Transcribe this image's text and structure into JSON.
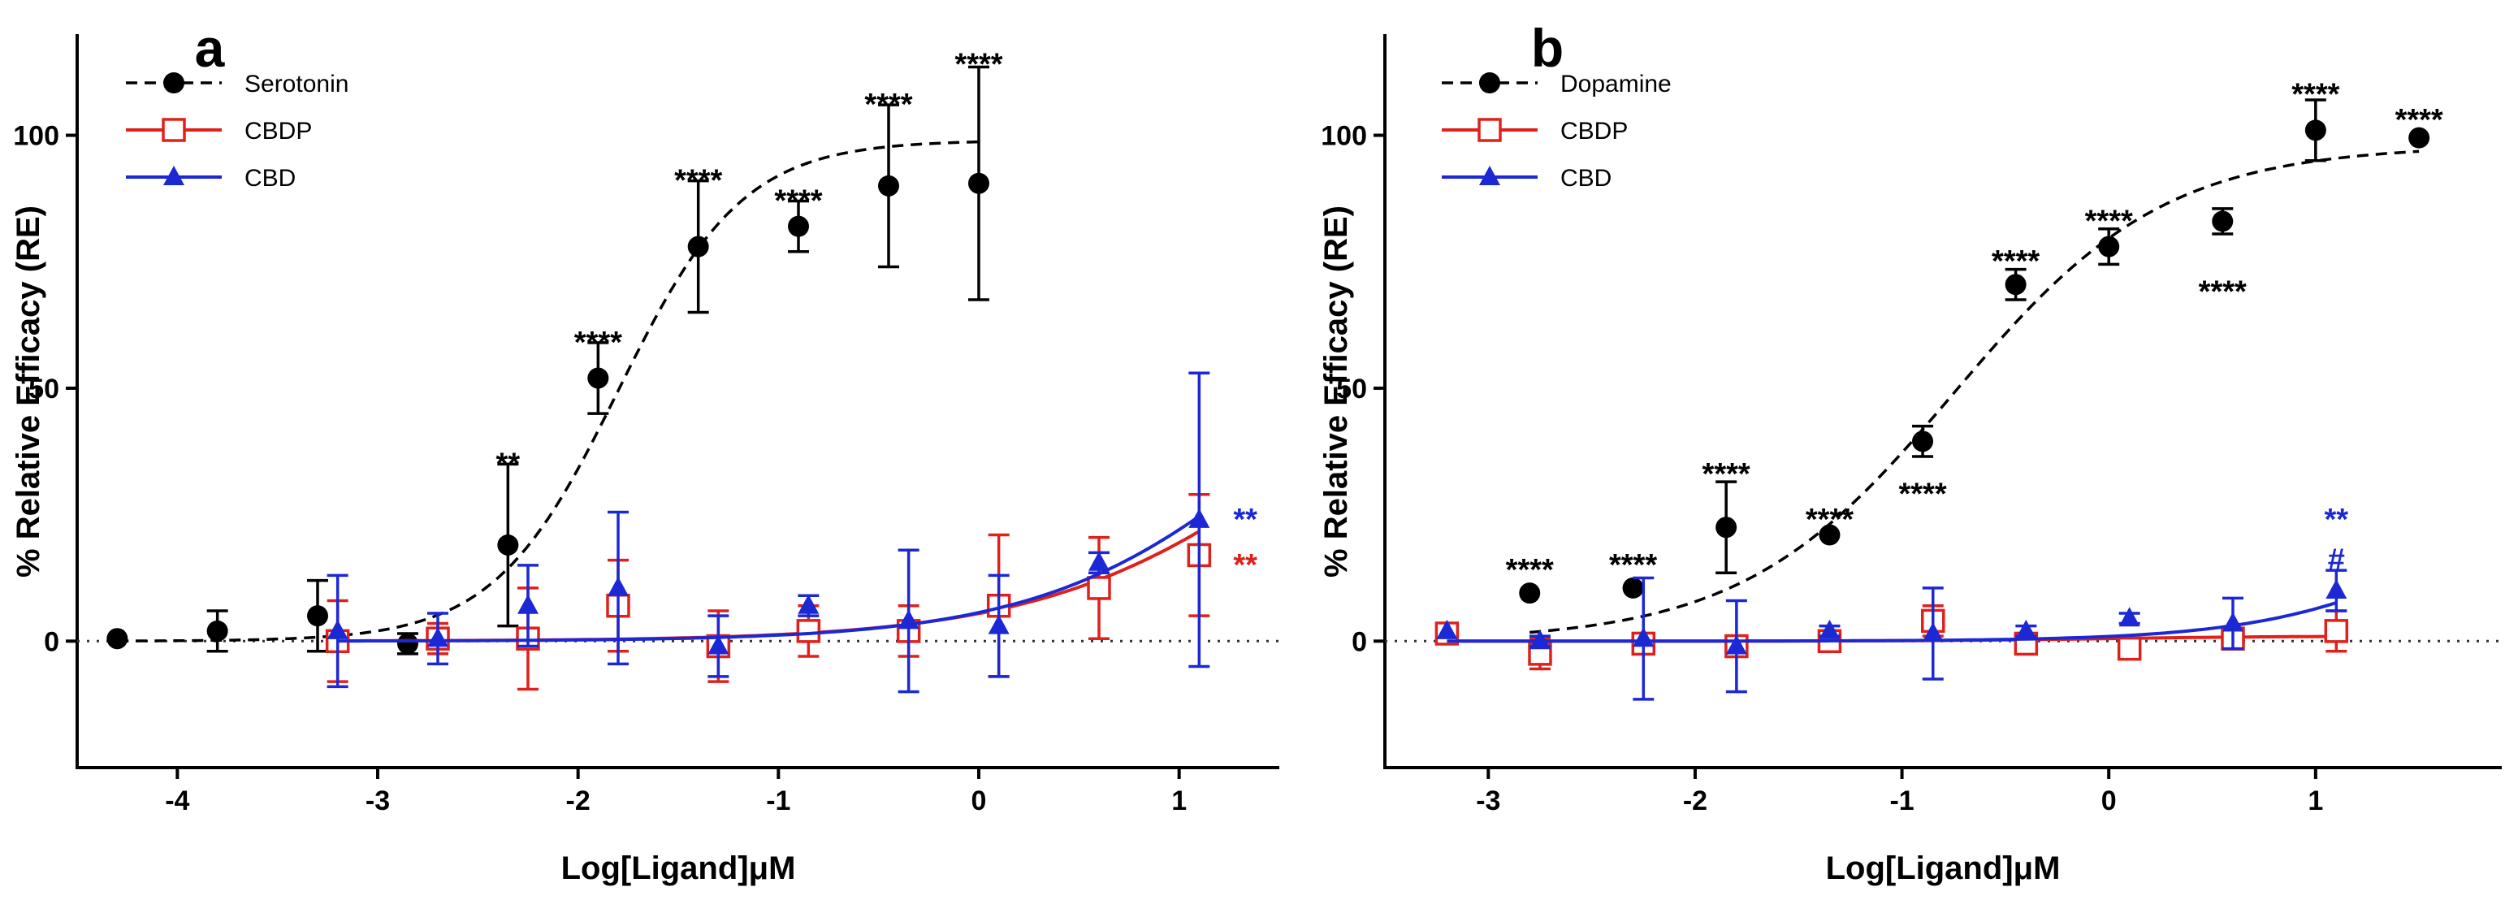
{
  "chart_data": [
    {
      "type": "scatter",
      "panel": "a",
      "xlabel": "Log[Ligand]μM",
      "ylabel": "% Relative Efficacy (RE)",
      "xlim": [
        -4.5,
        1.5
      ],
      "ylim": [
        -25,
        120
      ],
      "xticks": [
        -4,
        -3,
        -2,
        -1,
        0,
        1
      ],
      "yticks": [
        0,
        50,
        100
      ],
      "zero_line": true,
      "legend_position": "top-left",
      "series": [
        {
          "name": "Serotonin",
          "color": "#000000",
          "marker": "filled-circle",
          "line": "dashed",
          "fit": {
            "bottom": 0,
            "top": 99,
            "logEC50": -1.8,
            "hill": 1.4,
            "xmin": -4.3,
            "xmax": 0.0
          },
          "points": [
            {
              "x": -4.3,
              "y": 0.5,
              "err": 0
            },
            {
              "x": -3.8,
              "y": 2,
              "err": 4
            },
            {
              "x": -3.3,
              "y": 5,
              "err": 7
            },
            {
              "x": -2.85,
              "y": -0.5,
              "err": 2
            },
            {
              "x": -2.35,
              "y": 19,
              "err": 16
            },
            {
              "x": -1.9,
              "y": 52,
              "err": 7
            },
            {
              "x": -1.4,
              "y": 78,
              "err": 13
            },
            {
              "x": -0.9,
              "y": 82,
              "err": 5
            },
            {
              "x": -0.45,
              "y": 90,
              "err": 16
            },
            {
              "x": 0.0,
              "y": 90.5,
              "err": 23
            }
          ],
          "labels": [
            {
              "x": -2.35,
              "y": 35,
              "text": "**"
            },
            {
              "x": -1.9,
              "y": 59,
              "text": "****"
            },
            {
              "x": -1.4,
              "y": 91,
              "text": "****"
            },
            {
              "x": -0.9,
              "y": 87,
              "text": "****"
            },
            {
              "x": -0.45,
              "y": 106,
              "text": "****"
            },
            {
              "x": 0.0,
              "y": 114,
              "text": "****"
            }
          ]
        },
        {
          "name": "CBDP",
          "color": "#e0201b",
          "marker": "open-square",
          "line": "solid",
          "fit": {
            "bottom": 0,
            "top": 75,
            "logEC50": 1.7,
            "hill": 0.65,
            "xmin": -3.2,
            "xmax": 1.1
          },
          "points": [
            {
              "x": -3.2,
              "y": 0,
              "err": 8
            },
            {
              "x": -2.7,
              "y": 0.5,
              "err": 3
            },
            {
              "x": -2.25,
              "y": 0.5,
              "err": 10
            },
            {
              "x": -1.8,
              "y": 7,
              "err": 9
            },
            {
              "x": -1.3,
              "y": -1,
              "err": 7
            },
            {
              "x": -0.85,
              "y": 2,
              "err": 5
            },
            {
              "x": -0.35,
              "y": 2,
              "err": 5
            },
            {
              "x": 0.1,
              "y": 7,
              "err": 14
            },
            {
              "x": 0.6,
              "y": 10.5,
              "err": 10
            },
            {
              "x": 1.1,
              "y": 17,
              "err": 12
            }
          ],
          "labels": [
            {
              "x": 1.1,
              "y": 15,
              "text": "**"
            }
          ]
        },
        {
          "name": "CBD",
          "color": "#1c28d4",
          "marker": "filled-triangle",
          "line": "solid",
          "fit": {
            "bottom": 0,
            "top": 80,
            "logEC50": 1.6,
            "hill": 0.7,
            "xmin": -3.2,
            "xmax": 1.1
          },
          "points": [
            {
              "x": -3.2,
              "y": 2,
              "err": 11
            },
            {
              "x": -2.7,
              "y": 0.5,
              "err": 5
            },
            {
              "x": -2.25,
              "y": 7,
              "err": 8
            },
            {
              "x": -1.8,
              "y": 10.5,
              "err": 15
            },
            {
              "x": -1.3,
              "y": -1,
              "err": 6
            },
            {
              "x": -0.85,
              "y": 7,
              "err": 2
            },
            {
              "x": -0.35,
              "y": 4,
              "err": 14
            },
            {
              "x": 0.1,
              "y": 3,
              "err": 10
            },
            {
              "x": 0.6,
              "y": 15.5,
              "err": 2
            },
            {
              "x": 1.1,
              "y": 24,
              "err": 29
            }
          ],
          "labels": [
            {
              "x": 1.1,
              "y": 24,
              "text": "**"
            }
          ]
        }
      ]
    },
    {
      "type": "scatter",
      "panel": "b",
      "xlabel": "Log[Ligand]μM",
      "ylabel": "% Relative Efficacy (RE)",
      "xlim": [
        -3.5,
        1.9
      ],
      "ylim": [
        -25,
        120
      ],
      "xticks": [
        -3,
        -2,
        -1,
        0,
        1
      ],
      "yticks": [
        0,
        50,
        100
      ],
      "zero_line": true,
      "legend_position": "top-left",
      "series": [
        {
          "name": "Dopamine",
          "color": "#000000",
          "marker": "filled-circle",
          "line": "dashed",
          "fit": {
            "bottom": 0,
            "top": 98,
            "logEC50": -0.75,
            "hill": 0.85,
            "xmin": -2.8,
            "xmax": 1.5
          },
          "points": [
            {
              "x": -2.8,
              "y": 9.5,
              "err": 0
            },
            {
              "x": -2.3,
              "y": 10.5,
              "err": 0
            },
            {
              "x": -1.85,
              "y": 22.5,
              "err": 9
            },
            {
              "x": -1.35,
              "y": 21,
              "err": 0
            },
            {
              "x": -0.9,
              "y": 39.5,
              "err": 3
            },
            {
              "x": -0.45,
              "y": 70.5,
              "err": 3
            },
            {
              "x": 0.0,
              "y": 78,
              "err": 3.5
            },
            {
              "x": 0.55,
              "y": 83,
              "err": 2.5
            },
            {
              "x": 1.0,
              "y": 101,
              "err": 6
            },
            {
              "x": 1.5,
              "y": 99.5,
              "err": 0
            }
          ],
          "labels": [
            {
              "x": -2.8,
              "y": 14,
              "text": "****"
            },
            {
              "x": -2.3,
              "y": 15,
              "text": "****"
            },
            {
              "x": -1.85,
              "y": 33,
              "text": "****"
            },
            {
              "x": -1.35,
              "y": 24,
              "text": "****"
            },
            {
              "x": -0.9,
              "y": 29,
              "text": "****"
            },
            {
              "x": -0.45,
              "y": 75,
              "text": "****"
            },
            {
              "x": 0.0,
              "y": 83,
              "text": "****"
            },
            {
              "x": 0.55,
              "y": 69,
              "text": "****"
            },
            {
              "x": 1.0,
              "y": 108,
              "text": "****"
            },
            {
              "x": 1.5,
              "y": 103,
              "text": "****"
            }
          ]
        },
        {
          "name": "CBDP",
          "color": "#e0201b",
          "marker": "open-square",
          "line": "solid",
          "fit": {
            "bottom": 0,
            "top": 1,
            "logEC50": 0.0,
            "hill": 1,
            "xmin": -3.2,
            "xmax": 1.1
          },
          "points": [
            {
              "x": -3.2,
              "y": 1.5,
              "err": 0
            },
            {
              "x": -2.75,
              "y": -2.5,
              "err": 3
            },
            {
              "x": -2.25,
              "y": -0.5,
              "err": 2
            },
            {
              "x": -1.8,
              "y": -1,
              "err": 2
            },
            {
              "x": -1.35,
              "y": 0,
              "err": 0
            },
            {
              "x": -0.85,
              "y": 4,
              "err": 3
            },
            {
              "x": -0.4,
              "y": -0.5,
              "err": 0
            },
            {
              "x": 0.1,
              "y": -1.5,
              "err": 0
            },
            {
              "x": 0.6,
              "y": 0.5,
              "err": 2
            },
            {
              "x": 1.1,
              "y": 2,
              "err": 4
            }
          ],
          "labels": []
        },
        {
          "name": "CBD",
          "color": "#1c28d4",
          "marker": "filled-triangle",
          "line": "solid",
          "fit": {
            "bottom": 0,
            "top": 40,
            "logEC50": 1.8,
            "hill": 0.9,
            "xmin": -3.2,
            "xmax": 1.1
          },
          "points": [
            {
              "x": -3.2,
              "y": 2,
              "err": 0
            },
            {
              "x": -2.75,
              "y": 0,
              "err": 1
            },
            {
              "x": -2.25,
              "y": 0.5,
              "err": 12
            },
            {
              "x": -1.8,
              "y": -1,
              "err": 9
            },
            {
              "x": -1.35,
              "y": 2,
              "err": 1
            },
            {
              "x": -0.85,
              "y": 1.5,
              "err": 9
            },
            {
              "x": -0.4,
              "y": 2,
              "err": 1
            },
            {
              "x": 0.1,
              "y": 4.5,
              "err": 1
            },
            {
              "x": 0.6,
              "y": 3.5,
              "err": 5
            },
            {
              "x": 1.1,
              "y": 10,
              "err": 4
            }
          ],
          "labels": [
            {
              "x": 1.1,
              "y": 24,
              "text": "**"
            },
            {
              "x": 1.1,
              "y": 16,
              "text": "#"
            }
          ]
        }
      ]
    }
  ]
}
